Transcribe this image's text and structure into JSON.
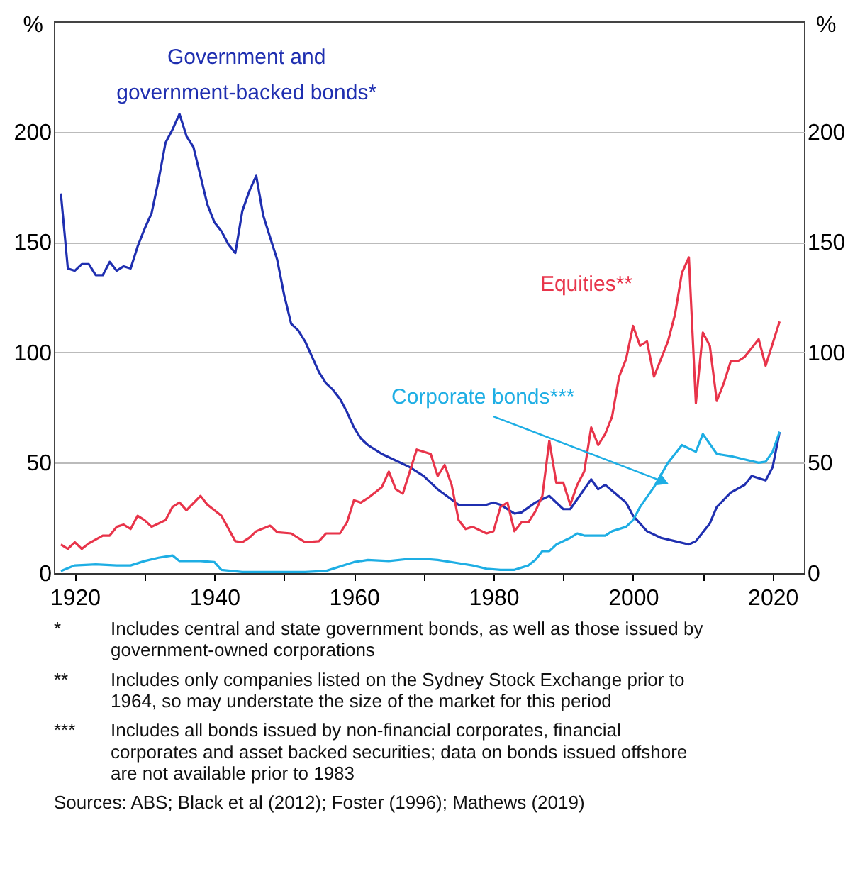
{
  "chart_data": {
    "type": "line",
    "ylabel": "%",
    "y2label": "%",
    "xlim": [
      1917,
      2024.5
    ],
    "ylim": [
      0,
      250
    ],
    "y2lim": [
      0,
      250
    ],
    "xticks": [
      1920,
      {
        "value": 1930,
        "label": null
      },
      1940,
      {
        "value": 1950,
        "label": null
      },
      1960,
      {
        "value": 1970,
        "label": null
      },
      1980,
      {
        "value": 1990,
        "label": null
      },
      2000,
      {
        "value": 2010,
        "label": null
      },
      2020
    ],
    "yticks": [
      0,
      50,
      100,
      150,
      200
    ],
    "y2ticks": [
      0,
      50,
      100,
      150,
      200
    ],
    "grid": "y",
    "legend": false,
    "line_style": "solid",
    "marker": "none",
    "series": [
      {
        "name": "Government and government-backed bonds*",
        "color": "#1f2fb0",
        "x": [
          1918,
          1919,
          1920,
          1921,
          1922,
          1923,
          1924,
          1925,
          1926,
          1927,
          1928,
          1929,
          1930,
          1931,
          1932,
          1933,
          1934,
          1935,
          1936,
          1937,
          1938,
          1939,
          1940,
          1941,
          1942,
          1943,
          1944,
          1945,
          1946,
          1947,
          1948,
          1949,
          1950,
          1951,
          1952,
          1953,
          1954,
          1955,
          1956,
          1957,
          1958,
          1959,
          1960,
          1961,
          1962,
          1964,
          1966,
          1968,
          1970,
          1972,
          1975,
          1977,
          1979,
          1980,
          1981,
          1983,
          1984,
          1986,
          1988,
          1990,
          1991,
          1993,
          1994,
          1995,
          1996,
          1999,
          2000,
          2002,
          2004,
          2006,
          2008,
          2009,
          2011,
          2012,
          2014,
          2016,
          2017,
          2019,
          2020,
          2021
        ],
        "values": [
          172,
          138,
          137,
          140,
          140,
          135,
          135,
          141,
          137,
          139,
          138,
          148,
          156,
          163,
          178,
          195,
          201,
          208,
          198,
          193,
          180,
          167,
          159,
          155,
          149,
          145,
          164,
          173,
          180,
          162,
          152,
          142,
          126,
          113,
          110,
          105,
          98,
          91,
          86,
          83,
          79,
          73,
          66,
          61,
          58,
          54,
          51,
          48,
          44,
          38,
          31,
          31,
          31,
          32,
          31,
          27,
          27.5,
          32,
          35,
          29,
          29,
          38,
          42.5,
          38,
          40,
          32,
          26,
          19,
          16,
          14.5,
          13,
          14.5,
          22.5,
          30,
          36.5,
          40,
          44,
          42,
          48,
          64
        ]
      },
      {
        "name": "Equities**",
        "color": "#e8344a",
        "x": [
          1918,
          1919,
          1920,
          1921,
          1922,
          1924,
          1925,
          1926,
          1927,
          1928,
          1929,
          1930,
          1931,
          1933,
          1934,
          1935,
          1936,
          1938,
          1939,
          1941,
          1943,
          1944,
          1945,
          1946,
          1948,
          1949,
          1951,
          1953,
          1955,
          1956,
          1958,
          1959,
          1960,
          1961,
          1962,
          1964,
          1965,
          1966,
          1967,
          1969,
          1971,
          1972,
          1973,
          1974,
          1975,
          1976,
          1977,
          1979,
          1980,
          1981,
          1982,
          1983,
          1984,
          1985,
          1986,
          1987,
          1988,
          1989,
          1990,
          1991,
          1992,
          1993,
          1994,
          1995,
          1996,
          1997,
          1998,
          1999,
          2000,
          2001,
          2002,
          2003,
          2004,
          2005,
          2006,
          2007,
          2008,
          2009,
          2010,
          2011,
          2012,
          2013,
          2014,
          2015,
          2016,
          2018,
          2019,
          2021
        ],
        "values": [
          13,
          11,
          14,
          11,
          13.5,
          17,
          17,
          21,
          22,
          20,
          26,
          24,
          21,
          24,
          30,
          32,
          28.5,
          35,
          31,
          26,
          14.5,
          14,
          16,
          19,
          21.5,
          18.5,
          18,
          14,
          14.5,
          18,
          18,
          23,
          33,
          32,
          34,
          39,
          46,
          38,
          36,
          56,
          54,
          44,
          49,
          40,
          24,
          20,
          21,
          18,
          19,
          30,
          32,
          19,
          23,
          23,
          28,
          35,
          60,
          41,
          41,
          31,
          40,
          46,
          66,
          58,
          63,
          71,
          89,
          97,
          112,
          103,
          105,
          89,
          97,
          105,
          117,
          136,
          143,
          77,
          109,
          103,
          78,
          86,
          96,
          96,
          98,
          106,
          94,
          114
        ]
      },
      {
        "name": "Corporate bonds***",
        "color": "#1eaee4",
        "x": [
          1918,
          1920,
          1923,
          1926,
          1928,
          1930,
          1932,
          1934,
          1935,
          1938,
          1940,
          1941,
          1944,
          1948,
          1953,
          1956,
          1959,
          1960,
          1962,
          1965,
          1968,
          1970,
          1972,
          1975,
          1977,
          1979,
          1981,
          1983,
          1985,
          1986,
          1987,
          1988,
          1989,
          1991,
          1992,
          1993,
          1996,
          1997,
          1999,
          2000,
          2001,
          2003,
          2005,
          2007,
          2009,
          2010,
          2012,
          2014,
          2016,
          2018,
          2019,
          2020,
          2021
        ],
        "values": [
          1,
          3.5,
          4,
          3.5,
          3.5,
          5.5,
          7,
          8,
          5.5,
          5.5,
          5,
          1.5,
          0.5,
          0.5,
          0.5,
          1,
          4,
          5,
          6,
          5.5,
          6.5,
          6.5,
          6,
          4.5,
          3.5,
          2,
          1.5,
          1.5,
          3.5,
          6,
          10,
          10,
          13,
          16,
          18,
          17,
          17,
          19,
          21,
          24,
          30,
          39,
          50,
          58,
          55,
          63,
          54,
          53,
          51.5,
          50,
          50.5,
          55,
          64
        ]
      }
    ],
    "annotations": [
      "* Includes central and state government bonds, as well as those issued by government-owned corporations",
      "** Includes only companies listed on the Sydney Stock Exchange prior to 1964, so may understate the size of the market for this period",
      "*** Includes all bonds issued by non-financial corporates, financial corporates and asset backed securities; data on bonds issued offshore are not available prior to 1983",
      "Sources: ABS; Black et al (2012); Foster (1996); Mathews (2019)"
    ]
  }
}
